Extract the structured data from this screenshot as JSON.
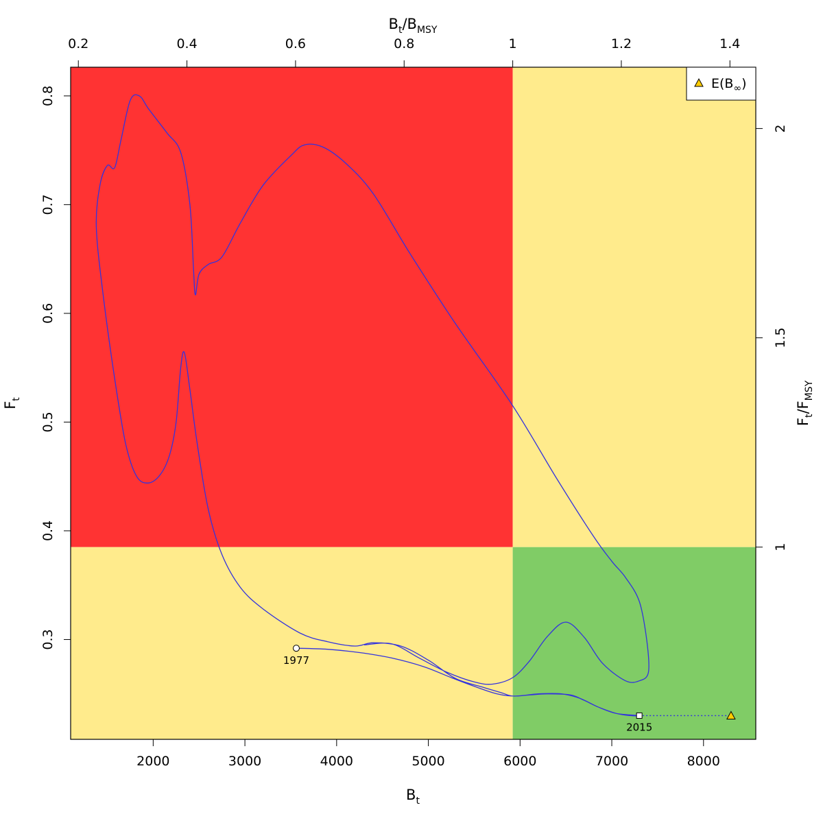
{
  "colors": {
    "red": "#ff3333",
    "yellow": "#ffeb8c",
    "green": "#80cc66",
    "trajectory": "#3333dd",
    "prediction_marker": "#ffcc00"
  },
  "chart_data": {
    "type": "scatter",
    "subtype": "kobe_plot",
    "title": "",
    "axes": {
      "bottom": {
        "label": "B",
        "label_sub": "t",
        "lim": [
          1100,
          8570
        ],
        "ticks": [
          "2000",
          "3000",
          "4000",
          "5000",
          "6000",
          "7000",
          "8000"
        ]
      },
      "left": {
        "label": "F",
        "label_sub": "t",
        "lim": [
          0.2082,
          0.8264
        ],
        "ticks": [
          "0.3",
          "0.4",
          "0.5",
          "0.6",
          "0.7",
          "0.8"
        ]
      },
      "top": {
        "label_parts": [
          "B",
          "t",
          "/B",
          "MSY"
        ],
        "ticks": [
          "0.2",
          "0.4",
          "0.6",
          "0.8",
          "1",
          "1.2",
          "1.4"
        ]
      },
      "right": {
        "label_parts": [
          "F",
          "t",
          "/F",
          "MSY"
        ],
        "ticks": [
          "1",
          "1.5",
          "2"
        ]
      }
    },
    "reference_points": {
      "Bmsy": 5920,
      "Fmsy": 0.385
    },
    "regions": [
      {
        "name": "overfished-overfishing",
        "color": "red"
      },
      {
        "name": "underfished-overfishing",
        "color": "yellow"
      },
      {
        "name": "overfished-no-overfishing",
        "color": "yellow"
      },
      {
        "name": "healthy",
        "color": "green"
      }
    ],
    "trajectory": {
      "start_year": "1977",
      "end_year": "2015",
      "points": [
        [
          3560,
          0.292
        ],
        [
          4100,
          0.289
        ],
        [
          4700,
          0.281
        ],
        [
          5150,
          0.27
        ],
        [
          5400,
          0.262
        ],
        [
          5900,
          0.248
        ],
        [
          6300,
          0.249
        ],
        [
          6700,
          0.241
        ],
        [
          7000,
          0.232
        ],
        [
          7300,
          0.23
        ]
      ],
      "smooth_curve": [
        [
          3560,
          0.292
        ],
        [
          3900,
          0.291
        ],
        [
          4250,
          0.288
        ],
        [
          4600,
          0.283
        ],
        [
          4950,
          0.275
        ],
        [
          5250,
          0.265
        ],
        [
          5500,
          0.257
        ],
        [
          5750,
          0.25
        ],
        [
          5950,
          0.248
        ],
        [
          6200,
          0.25
        ],
        [
          6450,
          0.25
        ],
        [
          6650,
          0.246
        ],
        [
          6850,
          0.238
        ],
        [
          7050,
          0.232
        ],
        [
          7300,
          0.23
        ],
        [
          7200,
          0.23
        ],
        [
          7050,
          0.232
        ],
        [
          6850,
          0.238
        ],
        [
          6700,
          0.244
        ],
        [
          6550,
          0.249
        ],
        [
          6300,
          0.25
        ],
        [
          6100,
          0.249
        ],
        [
          5920,
          0.248
        ],
        [
          5800,
          0.251
        ],
        [
          5600,
          0.256
        ],
        [
          5300,
          0.264
        ],
        [
          5000,
          0.281
        ],
        [
          4700,
          0.294
        ],
        [
          4400,
          0.297
        ],
        [
          4200,
          0.294
        ],
        [
          3900,
          0.298
        ],
        [
          3600,
          0.306
        ],
        [
          3200,
          0.328
        ],
        [
          2950,
          0.348
        ],
        [
          2750,
          0.378
        ],
        [
          2600,
          0.42
        ],
        [
          2480,
          0.48
        ],
        [
          2400,
          0.53
        ],
        [
          2340,
          0.564
        ],
        [
          2300,
          0.55
        ],
        [
          2250,
          0.5
        ],
        [
          2180,
          0.47
        ],
        [
          2080,
          0.452
        ],
        [
          1950,
          0.444
        ],
        [
          1820,
          0.45
        ],
        [
          1700,
          0.48
        ],
        [
          1580,
          0.54
        ],
        [
          1450,
          0.62
        ],
        [
          1380,
          0.68
        ],
        [
          1420,
          0.718
        ],
        [
          1500,
          0.736
        ],
        [
          1580,
          0.734
        ],
        [
          1650,
          0.76
        ],
        [
          1750,
          0.796
        ],
        [
          1850,
          0.8
        ],
        [
          1950,
          0.788
        ],
        [
          2150,
          0.766
        ],
        [
          2300,
          0.748
        ],
        [
          2400,
          0.7
        ],
        [
          2440,
          0.64
        ],
        [
          2460,
          0.617
        ],
        [
          2500,
          0.636
        ],
        [
          2600,
          0.645
        ],
        [
          2750,
          0.652
        ],
        [
          2950,
          0.683
        ],
        [
          3200,
          0.718
        ],
        [
          3500,
          0.745
        ],
        [
          3650,
          0.755
        ],
        [
          3850,
          0.753
        ],
        [
          4100,
          0.738
        ],
        [
          4400,
          0.71
        ],
        [
          4800,
          0.655
        ],
        [
          5300,
          0.59
        ],
        [
          5920,
          0.515
        ],
        [
          6400,
          0.448
        ],
        [
          6800,
          0.395
        ],
        [
          7000,
          0.372
        ],
        [
          7150,
          0.357
        ],
        [
          7300,
          0.335
        ],
        [
          7380,
          0.3
        ],
        [
          7400,
          0.27
        ],
        [
          7300,
          0.262
        ],
        [
          7150,
          0.262
        ],
        [
          6900,
          0.278
        ],
        [
          6700,
          0.302
        ],
        [
          6500,
          0.316
        ],
        [
          6300,
          0.303
        ],
        [
          6100,
          0.28
        ],
        [
          5920,
          0.265
        ],
        [
          5700,
          0.259
        ],
        [
          5500,
          0.261
        ],
        [
          5200,
          0.27
        ],
        [
          4900,
          0.283
        ],
        [
          4600,
          0.296
        ],
        [
          4300,
          0.295
        ]
      ]
    },
    "prediction": {
      "label_main": "E(B",
      "label_sub": "∞",
      "label_close": ")",
      "x": 8300,
      "y": 0.23
    },
    "legend": {
      "position": "top-right"
    }
  }
}
